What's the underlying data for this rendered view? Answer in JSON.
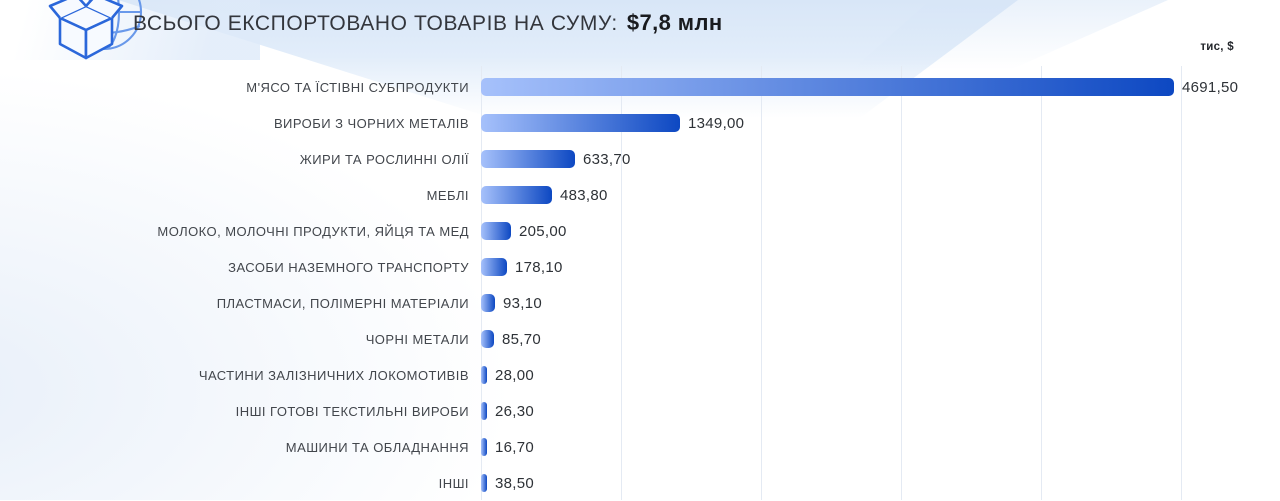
{
  "header": {
    "title_prefix": "ВСЬОГО ЕКСПОРТОВАНО ТОВАРІВ НА СУМУ:",
    "total_amount": "$7,8 млн",
    "icon": "package-globe-icon"
  },
  "axis": {
    "unit_label": "тис, $"
  },
  "colors": {
    "bar_gradient_start": "#a6c1fb",
    "bar_gradient_end": "#0d48c2",
    "header_band": "#d8e6f7",
    "gridline": "#e4eaf3",
    "category_text": "#42464c",
    "value_text": "#2e3237",
    "title_text": "#33363c",
    "icon_stroke_dark": "#2b67da",
    "icon_stroke_light": "#5b8fe8"
  },
  "chart_data": {
    "type": "bar",
    "orientation": "horizontal",
    "title": "ВСЬОГО ЕКСПОРТОВАНО ТОВАРІВ НА СУМУ: $7,8 млн",
    "unit": "тис, $",
    "xlim": [
      0,
      4740
    ],
    "grid": true,
    "legend": "none",
    "categories": [
      "М'ЯСО ТА ЇСТІВНІ СУБПРОДУКТИ",
      "ВИРОБИ З ЧОРНИХ МЕТАЛІВ",
      "ЖИРИ ТА РОСЛИННІ ОЛІЇ",
      "МЕБЛІ",
      "МОЛОКО, МОЛОЧНІ ПРОДУКТИ, ЯЙЦЯ ТА МЕД",
      "ЗАСОБИ НАЗЕМНОГО ТРАНСПОРТУ",
      "ПЛАСТМАСИ, ПОЛІМЕРНІ МАТЕРІАЛИ",
      "ЧОРНІ МЕТАЛИ",
      "ЧАСТИНИ ЗАЛІЗНИЧНИХ ЛОКОМОТИВІВ",
      "ІНШІ ГОТОВІ ТЕКСТИЛЬНІ ВИРОБИ",
      "МАШИНИ ТА ОБЛАДНАННЯ",
      "ІНШІ"
    ],
    "values": [
      4691.5,
      1349.0,
      633.7,
      483.8,
      205.0,
      178.1,
      93.1,
      85.7,
      28.0,
      26.3,
      16.7,
      38.5
    ],
    "value_labels": [
      "4691,50",
      "1349,00",
      "633,70",
      "483,80",
      "205,00",
      "178,10",
      "93,10",
      "85,70",
      "28,00",
      "26,30",
      "16,70",
      "38,50"
    ]
  }
}
